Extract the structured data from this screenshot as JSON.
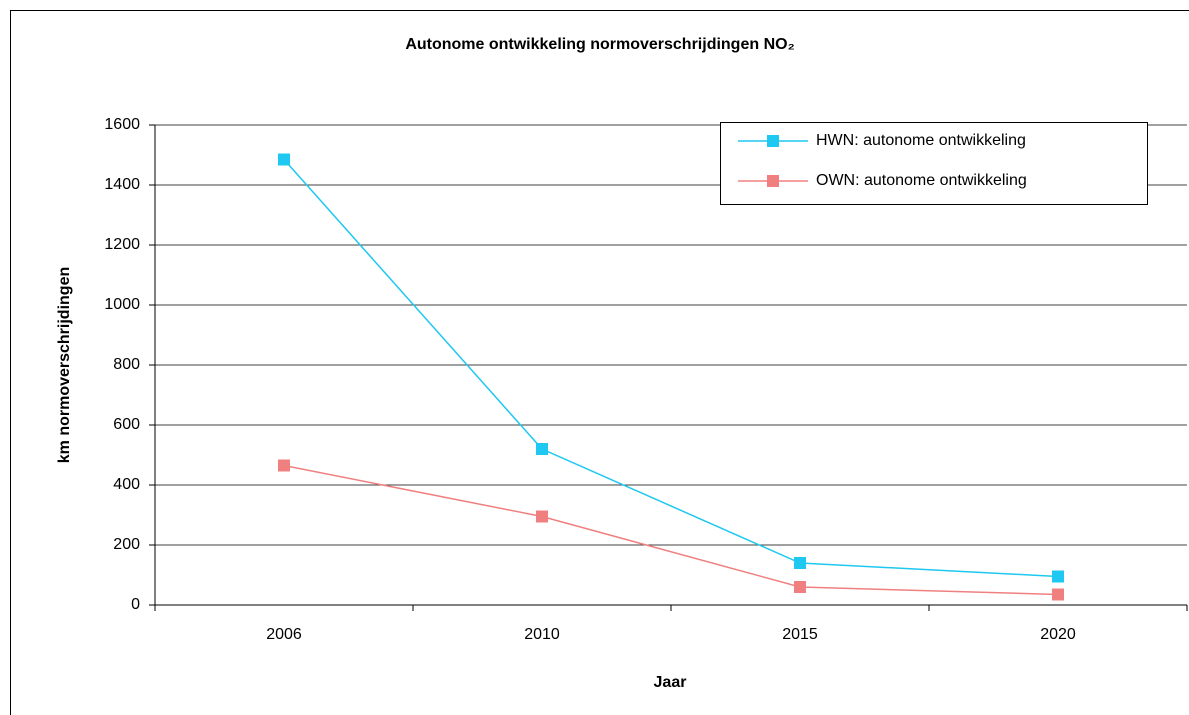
{
  "chart_data": {
    "type": "line",
    "title": "Autonome ontwikkeling normoverschrijdingen NO₂",
    "x_label": "Jaar",
    "y_label": "km normoverschrijdingen",
    "categories": [
      "2006",
      "2010",
      "2015",
      "2020"
    ],
    "series": [
      {
        "name": "HWN: autonome ontwikkeling",
        "color": "#1ec8f0",
        "values": [
          1485,
          520,
          140,
          95
        ]
      },
      {
        "name": "OWN: autonome ontwikkeling",
        "color": "#f08080",
        "values": [
          465,
          295,
          60,
          35
        ]
      }
    ],
    "ylim": [
      0,
      1600
    ],
    "yticks": [
      0,
      200,
      400,
      600,
      800,
      1000,
      1200,
      1400,
      1600
    ],
    "grid": true,
    "legend": "upper right"
  }
}
